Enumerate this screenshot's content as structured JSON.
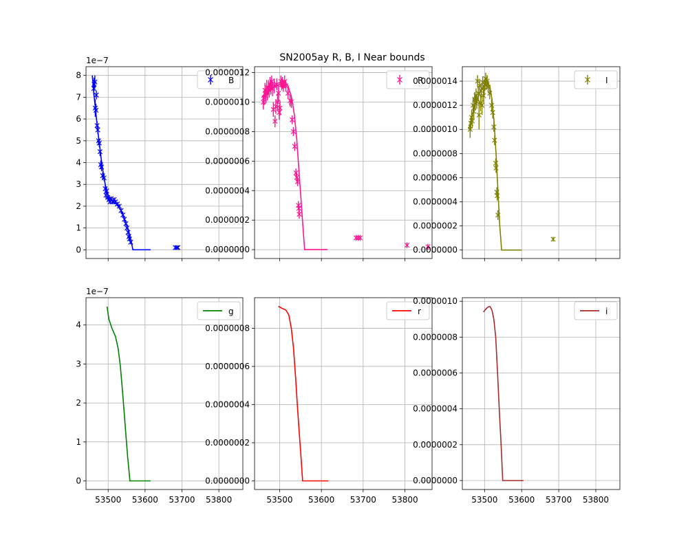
{
  "figure": {
    "title": "SN2005ay  R, B, I Near bounds"
  },
  "chart_data": [
    {
      "type": "scatter",
      "name": "B",
      "legend": "B",
      "legend_placement": "top-right",
      "color": "#0000ff",
      "marker": "x with error bars",
      "offset_label": "1e−7",
      "grid": true,
      "xlim": [
        53440,
        53865
      ],
      "ylim": [
        -4e-08,
        8.4e-07
      ],
      "xticks": [
        53500,
        53600,
        53700,
        53800
      ],
      "xtick_labels": [
        "",
        "",
        "",
        ""
      ],
      "yticks": [
        0,
        1e-07,
        2e-07,
        3e-07,
        4e-07,
        5e-07,
        6e-07,
        7e-07,
        8e-07
      ],
      "ytick_labels": [
        "0",
        "1",
        "2",
        "3",
        "4",
        "5",
        "6",
        "7",
        "8"
      ],
      "points": [
        [
          53461,
          7.4e-07,
          3e-08
        ],
        [
          53462,
          7.6e-07,
          3e-08
        ],
        [
          53464,
          7.7e-07,
          3e-08
        ],
        [
          53465,
          6.5e-07,
          4e-08
        ],
        [
          53467,
          6.4e-07,
          3e-08
        ],
        [
          53468,
          7.1e-07,
          2e-08
        ],
        [
          53470,
          5.7e-07,
          2e-08
        ],
        [
          53472,
          5.5e-07,
          2e-08
        ],
        [
          53474,
          5e-07,
          2e-08
        ],
        [
          53476,
          4.9e-07,
          2e-08
        ],
        [
          53478,
          4.5e-07,
          2e-08
        ],
        [
          53480,
          3.9e-07,
          2e-08
        ],
        [
          53482,
          3.8e-07,
          2e-08
        ],
        [
          53485,
          3.4e-07,
          1.5e-08
        ],
        [
          53489,
          3.3e-07,
          1.5e-08
        ],
        [
          53492,
          2.8e-07,
          1.5e-08
        ],
        [
          53494,
          2.5e-07,
          1.5e-08
        ],
        [
          53496,
          2.7e-07,
          1.5e-08
        ],
        [
          53499,
          2.4e-07,
          1.5e-08
        ],
        [
          53502,
          2.3e-07,
          1e-08
        ],
        [
          53505,
          2.2e-07,
          1e-08
        ],
        [
          53508,
          2.35e-07,
          1e-08
        ],
        [
          53512,
          2.2e-07,
          1e-08
        ],
        [
          53516,
          2.3e-07,
          1e-08
        ],
        [
          53520,
          2.2e-07,
          1e-08
        ],
        [
          53525,
          2.1e-07,
          1e-08
        ],
        [
          53530,
          2e-07,
          1e-08
        ],
        [
          53535,
          1.8e-07,
          1e-08
        ],
        [
          53540,
          1.6e-07,
          1e-08
        ],
        [
          53544,
          1.4e-07,
          1e-08
        ],
        [
          53548,
          1.2e-07,
          1e-08
        ],
        [
          53551,
          1e-07,
          1e-08
        ],
        [
          53554,
          8e-08,
          1e-08
        ],
        [
          53556,
          6e-08,
          1e-08
        ],
        [
          53558,
          5e-08,
          1e-08
        ],
        [
          53561,
          3.5e-08,
          1e-08
        ],
        [
          53682,
          1e-08,
          5e-09
        ],
        [
          53686,
          1e-08,
          5e-09
        ],
        [
          53689,
          1e-08,
          5e-09
        ]
      ],
      "line": [
        [
          53457,
          8e-07
        ],
        [
          53461,
          7.2e-07
        ],
        [
          53466,
          6.4e-07
        ],
        [
          53471,
          5.6e-07
        ],
        [
          53476,
          4.9e-07
        ],
        [
          53481,
          4.2e-07
        ],
        [
          53486,
          3.6e-07
        ],
        [
          53492,
          3e-07
        ],
        [
          53498,
          2.6e-07
        ],
        [
          53505,
          2.35e-07
        ],
        [
          53515,
          2.2e-07
        ],
        [
          53525,
          2.05e-07
        ],
        [
          53535,
          1.8e-07
        ],
        [
          53545,
          1.4e-07
        ],
        [
          53555,
          9e-08
        ],
        [
          53562,
          4.5e-08
        ],
        [
          53567,
          0.0
        ],
        [
          53615,
          0.0
        ]
      ]
    },
    {
      "type": "scatter",
      "name": "R",
      "legend": "R",
      "legend_placement": "top-right",
      "color": "#ff1493",
      "marker": "x with error bars",
      "grid": true,
      "xlim": [
        53440,
        53865
      ],
      "ylim": [
        -6e-08,
        1.24e-06
      ],
      "xticks": [
        53500,
        53600,
        53700,
        53800
      ],
      "xtick_labels": [
        "",
        "",
        "",
        ""
      ],
      "yticks": [
        0,
        2e-07,
        4e-07,
        6e-07,
        8e-07,
        1e-06,
        1.2e-06
      ],
      "ytick_labels": [
        "0.0000000",
        "0.0000002",
        "0.0000004",
        "0.0000006",
        "0.0000008",
        "0.0000010",
        "0.0000012"
      ],
      "points": [
        [
          53461,
          1e-06,
          5e-08
        ],
        [
          53463,
          1.03e-06,
          5e-08
        ],
        [
          53465,
          1.08e-06,
          5e-08
        ],
        [
          53467,
          1.04e-06,
          5e-08
        ],
        [
          53469,
          1.1e-06,
          5e-08
        ],
        [
          53471,
          1.06e-06,
          5e-08
        ],
        [
          53473,
          1.1e-06,
          5e-08
        ],
        [
          53475,
          1.08e-06,
          5e-08
        ],
        [
          53477,
          1.12e-06,
          5e-08
        ],
        [
          53479,
          1.1e-06,
          5e-08
        ],
        [
          53481,
          1.14e-06,
          4e-08
        ],
        [
          53483,
          1.09e-06,
          5e-08
        ],
        [
          53485,
          9.5e-07,
          5e-08
        ],
        [
          53487,
          1.11e-06,
          5e-08
        ],
        [
          53489,
          8.7e-07,
          4e-08
        ],
        [
          53491,
          9.7e-07,
          5e-08
        ],
        [
          53493,
          1.12e-06,
          4e-08
        ],
        [
          53495,
          1e-06,
          6e-08
        ],
        [
          53497,
          1.06e-06,
          6e-08
        ],
        [
          53499,
          9.3e-07,
          5e-08
        ],
        [
          53501,
          9.6e-07,
          5e-08
        ],
        [
          53503,
          1.14e-06,
          4e-08
        ],
        [
          53505,
          1.12e-06,
          4e-08
        ],
        [
          53507,
          1.13e-06,
          4e-08
        ],
        [
          53509,
          1.11e-06,
          4e-08
        ],
        [
          53512,
          1.14e-06,
          4e-08
        ],
        [
          53515,
          1.11e-06,
          4e-08
        ],
        [
          53520,
          1.06e-06,
          4e-08
        ],
        [
          53525,
          1.01e-06,
          4e-08
        ],
        [
          53528,
          1e-06,
          4e-08
        ],
        [
          53530,
          8.8e-07,
          3e-08
        ],
        [
          53533,
          8e-07,
          3e-08
        ],
        [
          53536,
          7e-07,
          3e-08
        ],
        [
          53539,
          5.2e-07,
          3e-08
        ],
        [
          53541,
          4.9e-07,
          3e-08
        ],
        [
          53543,
          4.6e-07,
          3e-08
        ],
        [
          53545,
          3e-07,
          3e-08
        ],
        [
          53546,
          2.8e-07,
          3e-08
        ],
        [
          53547,
          2.4e-07,
          3e-08
        ],
        [
          53683,
          8e-08,
          2e-08
        ],
        [
          53688,
          8e-08,
          2e-08
        ],
        [
          53693,
          8e-08,
          2e-08
        ],
        [
          53805,
          3e-08,
          2e-08
        ],
        [
          53855,
          2e-08,
          2e-08
        ]
      ],
      "line": [
        [
          53457,
          1.03e-06
        ],
        [
          53470,
          1.07e-06
        ],
        [
          53485,
          1.1e-06
        ],
        [
          53500,
          1.12e-06
        ],
        [
          53512,
          1.13e-06
        ],
        [
          53520,
          1.11e-06
        ],
        [
          53528,
          1.04e-06
        ],
        [
          53535,
          9.2e-07
        ],
        [
          53541,
          7.5e-07
        ],
        [
          53546,
          5.5e-07
        ],
        [
          53551,
          3.5e-07
        ],
        [
          53556,
          1.5e-07
        ],
        [
          53560,
          0.0
        ],
        [
          53615,
          0.0
        ]
      ]
    },
    {
      "type": "scatter",
      "name": "I",
      "legend": "I",
      "legend_placement": "top-right",
      "color": "#808000",
      "marker": "x with error bars",
      "grid": true,
      "xlim": [
        53440,
        53865
      ],
      "ylim": [
        -7e-08,
        1.52e-06
      ],
      "xticks": [
        53500,
        53600,
        53700,
        53800
      ],
      "xtick_labels": [
        "",
        "",
        "",
        ""
      ],
      "yticks": [
        0,
        2e-07,
        4e-07,
        6e-07,
        8e-07,
        1e-06,
        1.2e-06,
        1.4e-06
      ],
      "ytick_labels": [
        "0.0000000",
        "0.0000002",
        "0.0000004",
        "0.0000006",
        "0.0000008",
        "0.0000010",
        "0.0000012",
        "0.0000014"
      ],
      "points": [
        [
          53461,
          1e-06,
          7e-08
        ],
        [
          53463,
          1.05e-06,
          6e-08
        ],
        [
          53465,
          1.1e-06,
          6e-08
        ],
        [
          53467,
          1.07e-06,
          6e-08
        ],
        [
          53469,
          1.2e-06,
          6e-08
        ],
        [
          53471,
          1.15e-06,
          6e-08
        ],
        [
          53473,
          1.25e-06,
          6e-08
        ],
        [
          53475,
          1.22e-06,
          6e-08
        ],
        [
          53477,
          1.28e-06,
          6e-08
        ],
        [
          53479,
          1.23e-06,
          6e-08
        ],
        [
          53481,
          1.4e-06,
          5e-08
        ],
        [
          53483,
          1.3e-06,
          6e-08
        ],
        [
          53485,
          1.12e-06,
          1.2e-07
        ],
        [
          53487,
          1.36e-06,
          5e-08
        ],
        [
          53489,
          1.22e-06,
          7e-08
        ],
        [
          53491,
          1.32e-06,
          5e-08
        ],
        [
          53493,
          1.2e-06,
          8e-08
        ],
        [
          53495,
          1.39e-06,
          5e-08
        ],
        [
          53497,
          1.28e-06,
          6e-08
        ],
        [
          53499,
          1.35e-06,
          6e-08
        ],
        [
          53501,
          1.37e-06,
          5e-08
        ],
        [
          53503,
          1.42e-06,
          5e-08
        ],
        [
          53505,
          1.38e-06,
          5e-08
        ],
        [
          53507,
          1.4e-06,
          5e-08
        ],
        [
          53510,
          1.35e-06,
          5e-08
        ],
        [
          53514,
          1.3e-06,
          5e-08
        ],
        [
          53519,
          1.2e-06,
          5e-08
        ],
        [
          53522,
          1.14e-06,
          5e-08
        ],
        [
          53525,
          1.02e-06,
          4e-08
        ],
        [
          53527,
          9.1e-07,
          4e-08
        ],
        [
          53530,
          7.2e-07,
          4e-08
        ],
        [
          53531,
          6.8e-07,
          4e-08
        ],
        [
          53533,
          4.8e-07,
          4e-08
        ],
        [
          53534,
          4.5e-07,
          4e-08
        ],
        [
          53536,
          2.9e-07,
          4e-08
        ],
        [
          53685,
          9e-08,
          2e-08
        ]
      ],
      "line": [
        [
          53457,
          1e-06
        ],
        [
          53467,
          1.12e-06
        ],
        [
          53477,
          1.22e-06
        ],
        [
          53487,
          1.3e-06
        ],
        [
          53497,
          1.36e-06
        ],
        [
          53507,
          1.39e-06
        ],
        [
          53514,
          1.36e-06
        ],
        [
          53520,
          1.25e-06
        ],
        [
          53526,
          1.05e-06
        ],
        [
          53531,
          8e-07
        ],
        [
          53536,
          5e-07
        ],
        [
          53541,
          2e-07
        ],
        [
          53546,
          0.0
        ],
        [
          53600,
          0.0
        ]
      ]
    },
    {
      "type": "line",
      "name": "g",
      "legend": "g",
      "legend_placement": "top-right",
      "color": "#008000",
      "offset_label": "1e−7",
      "grid": true,
      "xlim": [
        53440,
        53865
      ],
      "ylim": [
        -2.2e-08,
        4.7e-07
      ],
      "xticks": [
        53500,
        53600,
        53700,
        53800
      ],
      "xtick_labels": [
        "53500",
        "53600",
        "53700",
        "53800"
      ],
      "yticks": [
        0,
        1e-07,
        2e-07,
        3e-07,
        4e-07
      ],
      "ytick_labels": [
        "0",
        "1",
        "2",
        "3",
        "4"
      ],
      "line": [
        [
          53497,
          4.47e-07
        ],
        [
          53502,
          4.15e-07
        ],
        [
          53510,
          3.92e-07
        ],
        [
          53520,
          3.7e-07
        ],
        [
          53527,
          3.4e-07
        ],
        [
          53533,
          2.95e-07
        ],
        [
          53538,
          2.4e-07
        ],
        [
          53543,
          1.8e-07
        ],
        [
          53548,
          1.2e-07
        ],
        [
          53553,
          6e-08
        ],
        [
          53557,
          2e-08
        ],
        [
          53559,
          0.0
        ],
        [
          53615,
          0.0
        ]
      ]
    },
    {
      "type": "line",
      "name": "r",
      "legend": "r",
      "legend_placement": "top-right",
      "color": "#ff0000",
      "grid": true,
      "xlim": [
        53440,
        53865
      ],
      "ylim": [
        -4.5e-08,
        9.6e-07
      ],
      "xticks": [
        53500,
        53600,
        53700,
        53800
      ],
      "xtick_labels": [
        "53500",
        "53600",
        "53700",
        "53800"
      ],
      "yticks": [
        0,
        2e-07,
        4e-07,
        6e-07,
        8e-07
      ],
      "ytick_labels": [
        "0.0000000",
        "0.0000002",
        "0.0000004",
        "0.0000006",
        "0.0000008"
      ],
      "line": [
        [
          53497,
          9.15e-07
        ],
        [
          53505,
          9.05e-07
        ],
        [
          53515,
          8.95e-07
        ],
        [
          53522,
          8.7e-07
        ],
        [
          53528,
          8e-07
        ],
        [
          53533,
          7e-07
        ],
        [
          53538,
          5.5e-07
        ],
        [
          53543,
          3.8e-07
        ],
        [
          53548,
          2.2e-07
        ],
        [
          53552,
          1e-07
        ],
        [
          53555,
          0.0
        ],
        [
          53617,
          0.0
        ]
      ]
    },
    {
      "type": "line",
      "name": "i",
      "legend": "i",
      "legend_placement": "top-right",
      "color": "#a52a2a",
      "grid": true,
      "xlim": [
        53440,
        53865
      ],
      "ylim": [
        -5e-08,
        1.02e-06
      ],
      "xticks": [
        53500,
        53600,
        53700,
        53800
      ],
      "xtick_labels": [
        "53500",
        "53600",
        "53700",
        "53800"
      ],
      "yticks": [
        0,
        2e-07,
        4e-07,
        6e-07,
        8e-07,
        1e-06
      ],
      "ytick_labels": [
        "0.0000000",
        "0.0000002",
        "0.0000004",
        "0.0000006",
        "0.0000008",
        "0.0000010"
      ],
      "line": [
        [
          53497,
          9.4e-07
        ],
        [
          53505,
          9.6e-07
        ],
        [
          53511,
          9.7e-07
        ],
        [
          53515,
          9.7e-07
        ],
        [
          53520,
          9.5e-07
        ],
        [
          53525,
          9e-07
        ],
        [
          53530,
          8e-07
        ],
        [
          53535,
          6e-07
        ],
        [
          53540,
          3.8e-07
        ],
        [
          53545,
          1.8e-07
        ],
        [
          53549,
          0.0
        ],
        [
          53605,
          0.0
        ]
      ]
    }
  ]
}
